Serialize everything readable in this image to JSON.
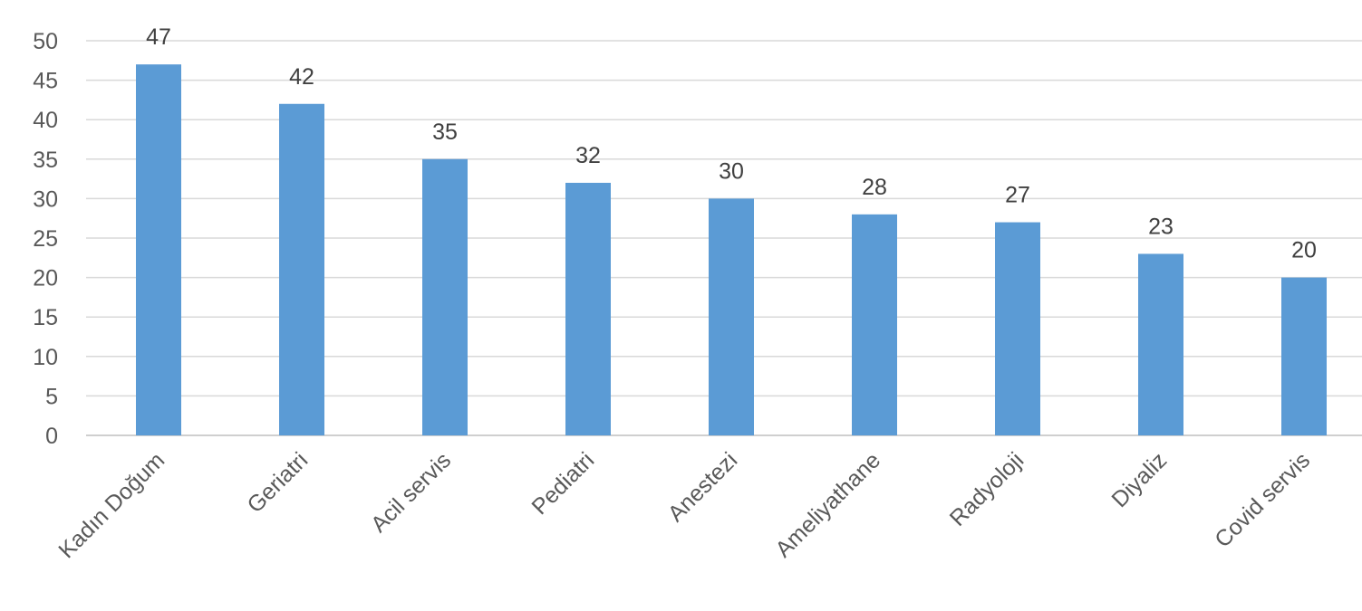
{
  "chart_data": {
    "type": "bar",
    "title": "",
    "xlabel": "",
    "ylabel": "",
    "categories": [
      "Kadın Doğum",
      "Geriatri",
      "Acil servis",
      "Pediatri",
      "Anestezi",
      "Ameliyathane",
      "Radyoloji",
      "Diyaliz",
      "Covid servis"
    ],
    "values": [
      47,
      42,
      35,
      32,
      30,
      28,
      27,
      23,
      20
    ],
    "ylim": [
      0,
      50
    ],
    "yticks": [
      0,
      5,
      10,
      15,
      20,
      25,
      30,
      35,
      40,
      45,
      50
    ],
    "grid": true,
    "legend": "none",
    "bar_color": "#5b9bd5",
    "data_labels": true,
    "category_label_rotation_deg": -45
  }
}
